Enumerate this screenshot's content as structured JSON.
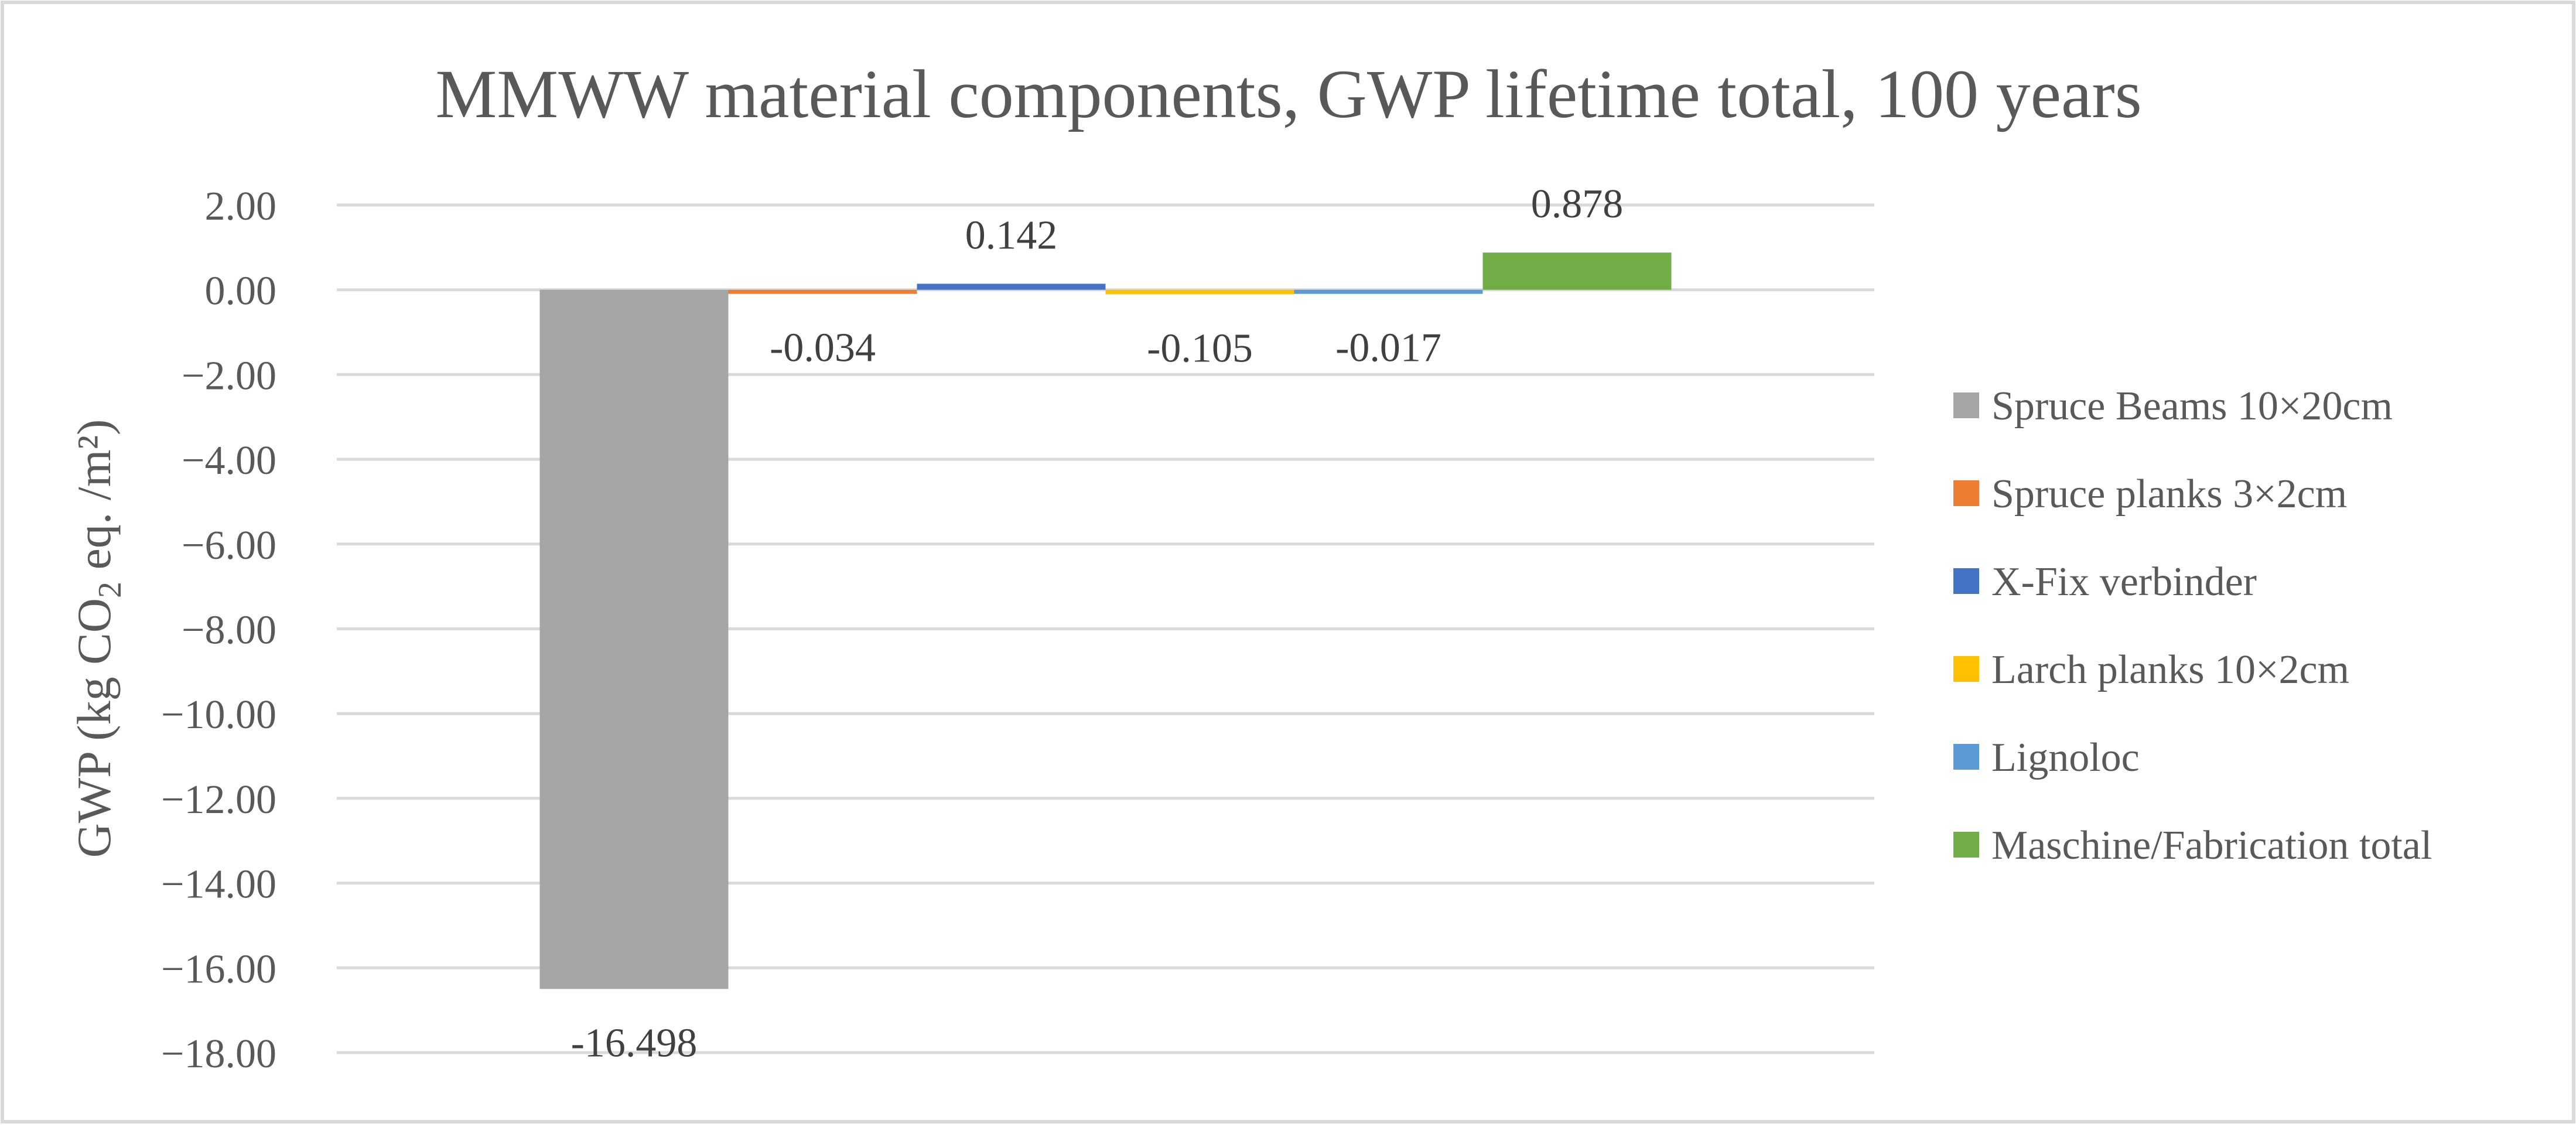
{
  "chart_data": {
    "type": "bar",
    "title": "MMWW material components, GWP lifetime total, 100 years",
    "ylabel": "GWP (kg CO₂ eq. /m²)",
    "xlabel": "",
    "ylim": [
      -18,
      2
    ],
    "ytick_step": 2,
    "ytick_labels": [
      "2.00",
      "0.00",
      "−2.00",
      "−4.00",
      "−6.00",
      "−8.00",
      "−10.00",
      "−12.00",
      "−14.00",
      "−16.00",
      "−18.00"
    ],
    "grid": true,
    "legend_position": "right",
    "series": [
      {
        "name": "Spruce Beams 10×20cm",
        "value": -16.498,
        "label": "-16.498",
        "color": "#a5a5a5"
      },
      {
        "name": "Spruce planks 3×2cm",
        "value": -0.034,
        "label": "-0.034",
        "color": "#ed7d31"
      },
      {
        "name": "X-Fix verbinder",
        "value": 0.142,
        "label": "0.142",
        "color": "#4472c4"
      },
      {
        "name": "Larch planks 10×2cm",
        "value": -0.105,
        "label": "-0.105",
        "color": "#ffc000"
      },
      {
        "name": "Lignoloc",
        "value": -0.017,
        "label": "-0.017",
        "color": "#5b9bd5"
      },
      {
        "name": "Maschine/Fabrication total",
        "value": 0.878,
        "label": "0.878",
        "color": "#70ad47"
      }
    ],
    "colors": {
      "grid": "#d9d9d9",
      "text": "#595959",
      "data_label": "#404040",
      "frame": "#d9d9d9"
    }
  }
}
